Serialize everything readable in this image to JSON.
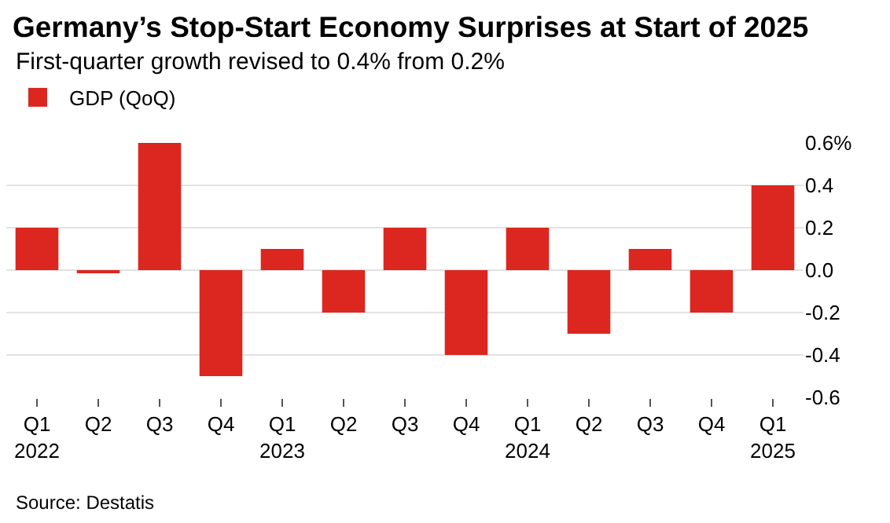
{
  "chart_data": {
    "type": "bar",
    "title": "Germany’s Stop-Start Economy Surprises at Start of 2025",
    "subtitle": "First-quarter growth revised to 0.4% from 0.2%",
    "categories": [
      "Q1\n2022",
      "Q2",
      "Q3",
      "Q4",
      "Q1\n2023",
      "Q2",
      "Q3",
      "Q4",
      "Q1\n2024",
      "Q2",
      "Q3",
      "Q4",
      "Q1\n2025"
    ],
    "series": [
      {
        "name": "GDP (QoQ)",
        "color": "#dc2620",
        "values": [
          0.2,
          -0.01,
          0.6,
          -0.5,
          0.1,
          -0.2,
          0.2,
          -0.4,
          0.2,
          -0.3,
          0.1,
          -0.2,
          0.4
        ]
      }
    ],
    "ylim": [
      -0.6,
      0.6
    ],
    "yticks": [
      {
        "value": 0.6,
        "label": "0.6%"
      },
      0.4,
      0.2,
      {
        "value": 0,
        "label": "0.0"
      },
      -0.2,
      -0.4,
      -0.6
    ],
    "grid": "y",
    "legend": "top left",
    "annotations": [
      "Source: Destatis"
    ]
  }
}
